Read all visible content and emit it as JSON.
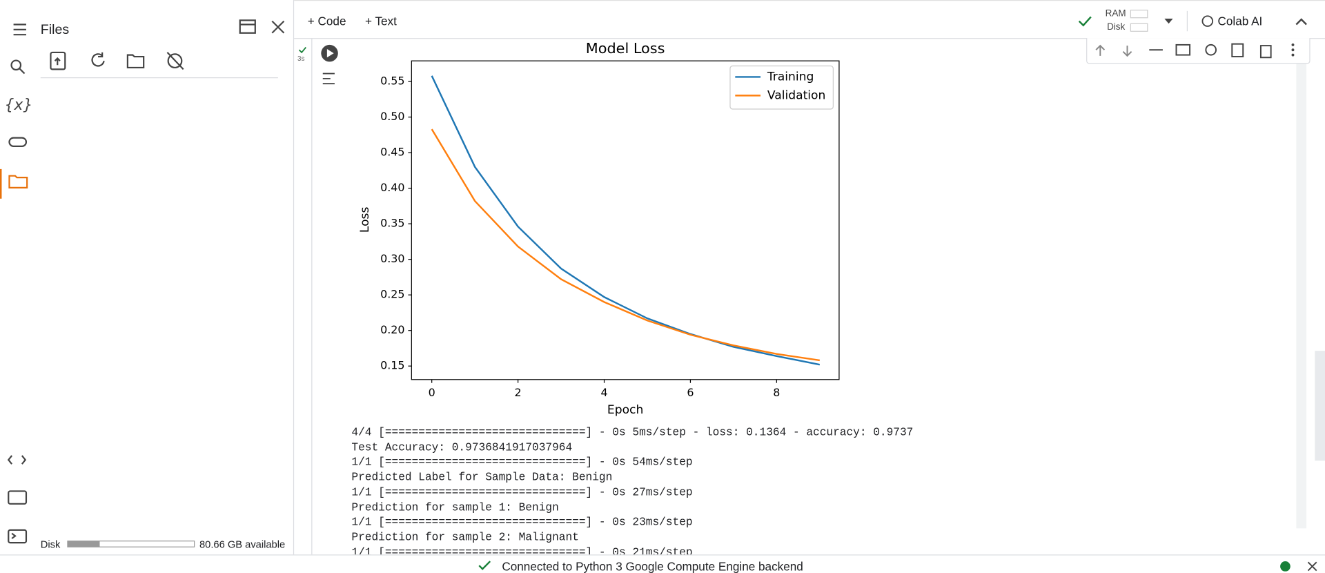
{
  "sidebar": {
    "title": "Files",
    "disk_label": "Disk",
    "disk_available": "80.66 GB available"
  },
  "toolbar": {
    "code": "Code",
    "text": "Text",
    "ram": "RAM",
    "disk": "Disk",
    "colab_ai": "Colab AI"
  },
  "cell": {
    "exec_time": "3s"
  },
  "chart_data": {
    "type": "line",
    "title": "Model Loss",
    "x_label": "Epoch",
    "y_label": "Loss",
    "x": [
      0,
      1,
      2,
      3,
      4,
      5,
      6,
      7,
      8,
      9
    ],
    "series": [
      {
        "name": "Training",
        "color": "#1f77b4",
        "values": [
          0.558,
          0.43,
          0.346,
          0.287,
          0.247,
          0.217,
          0.195,
          0.177,
          0.164,
          0.152
        ]
      },
      {
        "name": "Validation",
        "color": "#ff7f0e",
        "values": [
          0.483,
          0.382,
          0.318,
          0.272,
          0.24,
          0.214,
          0.194,
          0.179,
          0.167,
          0.158
        ]
      }
    ],
    "xlim": [
      -0.47,
      9.45
    ],
    "xticks": [
      0,
      2,
      4,
      6,
      8
    ],
    "ylim": [
      0.131,
      0.579
    ],
    "yticks": [
      0.15,
      {
        "value": 0.2,
        "label": "0.20"
      },
      0.25,
      {
        "value": 0.3,
        "label": "0.30"
      },
      0.35,
      {
        "value": 0.4,
        "label": "0.40"
      },
      0.45,
      {
        "value": 0.5,
        "label": "0.50"
      },
      0.55
    ],
    "legend": "upper right",
    "grid": false
  },
  "output": [
    "4/4 [==============================] - 0s 5ms/step - loss: 0.1364 - accuracy: 0.9737",
    "Test Accuracy: 0.9736841917037964",
    "1/1 [==============================] - 0s 54ms/step",
    "Predicted Label for Sample Data: Benign",
    "1/1 [==============================] - 0s 27ms/step",
    "Prediction for sample 1: Benign",
    "1/1 [==============================] - 0s 23ms/step",
    "Prediction for sample 2: Malignant",
    "1/1 [==============================] - 0s 21ms/step"
  ],
  "status": "Connected to Python 3 Google Compute Engine backend"
}
